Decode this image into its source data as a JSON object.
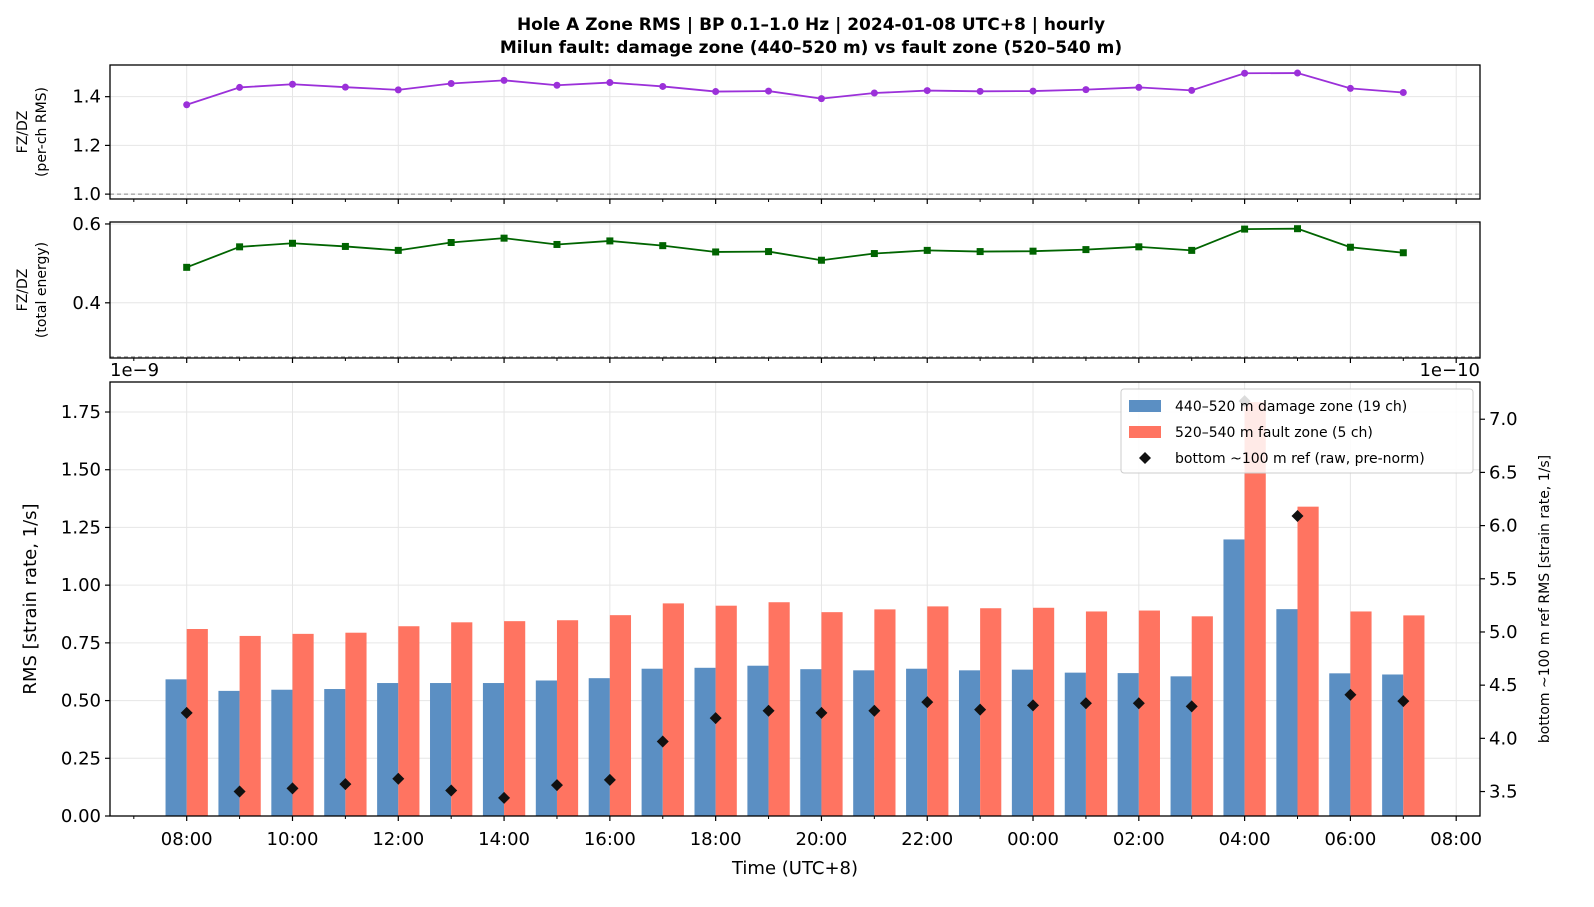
{
  "figure": {
    "title_line1": "Hole A Zone RMS  |  BP 0.1–1.0 Hz  |  2024-01-08 UTC+8  |  hourly",
    "title_line2": "Milun fault: damage zone (440–520 m) vs fault zone (520–540 m)"
  },
  "colors": {
    "ratio_rms": "#9b30d9",
    "ratio_energy": "#006400",
    "damage_zone": "#5b8fc3",
    "fault_zone": "#ff7461",
    "bottom_ref": "#111111"
  },
  "chart_data": [
    {
      "type": "line",
      "ylabel_line1": "FZ/DZ",
      "ylabel_line2": "(per-ch RMS)",
      "ylim": [
        0.98,
        1.53
      ],
      "yticks": [
        1.0,
        1.2,
        1.4
      ],
      "ytick_labels": [
        "1.0",
        "1.2",
        "1.4"
      ],
      "reference_line": 1.0,
      "grid": true,
      "series": [
        {
          "values": [
            1.367,
            1.438,
            1.451,
            1.439,
            1.428,
            1.454,
            1.467,
            1.447,
            1.458,
            1.442,
            1.421,
            1.423,
            1.392,
            1.415,
            1.425,
            1.422,
            1.423,
            1.429,
            1.438,
            1.426,
            1.496,
            1.497,
            1.434,
            1.417
          ]
        }
      ]
    },
    {
      "type": "line",
      "ylabel_line1": "FZ/DZ",
      "ylabel_line2": "(total energy)",
      "ylim": [
        0.26,
        0.605
      ],
      "yticks": [
        0.4,
        0.6
      ],
      "ytick_labels": [
        "0.4",
        "0.6"
      ],
      "reference_line": 0.263,
      "grid": true,
      "series": [
        {
          "values": [
            0.49,
            0.542,
            0.551,
            0.543,
            0.533,
            0.553,
            0.564,
            0.548,
            0.557,
            0.545,
            0.529,
            0.53,
            0.508,
            0.525,
            0.533,
            0.53,
            0.531,
            0.535,
            0.542,
            0.533,
            0.587,
            0.588,
            0.541,
            0.527
          ]
        }
      ]
    },
    {
      "type": "bar",
      "xlabel": "Time (UTC+8)",
      "ylabel": "RMS  [strain rate, 1/s]",
      "ylabel_right": "bottom ~100 m ref RMS  [strain rate, 1/s]",
      "offset_left": "1e−9",
      "offset_right": "1e−10",
      "ylim": [
        0,
        1.88
      ],
      "yticks": [
        0,
        0.25,
        0.5,
        0.75,
        1.0,
        1.25,
        1.5,
        1.75
      ],
      "ytick_labels": [
        "0.00",
        "0.25",
        "0.50",
        "0.75",
        "1.00",
        "1.25",
        "1.50",
        "1.75"
      ],
      "ylim_right": [
        3.27,
        7.35
      ],
      "yticks_right": [
        3.5,
        4.0,
        4.5,
        5.0,
        5.5,
        6.0,
        6.5,
        7.0
      ],
      "ytick_labels_right": [
        "3.5",
        "4.0",
        "4.5",
        "5.0",
        "5.5",
        "6.0",
        "6.5",
        "7.0"
      ],
      "x_hours": [
        8,
        9,
        10,
        11,
        12,
        13,
        14,
        15,
        16,
        17,
        18,
        19,
        20,
        21,
        22,
        23,
        24,
        25,
        26,
        27,
        28,
        29,
        30,
        31
      ],
      "xlim_hours": [
        6.55,
        32.45
      ],
      "xticks_hours": [
        8,
        10,
        12,
        14,
        16,
        18,
        20,
        22,
        24,
        26,
        28,
        30,
        32
      ],
      "xtick_labels": [
        "08:00",
        "10:00",
        "12:00",
        "14:00",
        "16:00",
        "18:00",
        "20:00",
        "22:00",
        "00:00",
        "02:00",
        "04:00",
        "06:00",
        "08:00"
      ],
      "legend_position": "top-right",
      "grid": true,
      "series": [
        {
          "name": "440–520 m  damage zone (19 ch)",
          "values": [
            0.592,
            0.542,
            0.547,
            0.55,
            0.576,
            0.576,
            0.576,
            0.587,
            0.597,
            0.638,
            0.642,
            0.651,
            0.636,
            0.631,
            0.638,
            0.631,
            0.634,
            0.621,
            0.619,
            0.605,
            1.198,
            0.896,
            0.618,
            0.613
          ]
        },
        {
          "name": "520–540 m  fault zone (5 ch)",
          "values": [
            0.81,
            0.78,
            0.789,
            0.794,
            0.822,
            0.839,
            0.844,
            0.848,
            0.87,
            0.921,
            0.911,
            0.926,
            0.883,
            0.895,
            0.908,
            0.9,
            0.902,
            0.886,
            0.89,
            0.865,
            1.793,
            1.34,
            0.886,
            0.869
          ]
        },
        {
          "name": "bottom ~100 m ref (raw, pre-norm)",
          "axis": "right",
          "values": [
            4.24,
            3.5,
            3.53,
            3.57,
            3.62,
            3.51,
            3.44,
            3.56,
            3.61,
            3.97,
            4.19,
            4.26,
            4.24,
            4.26,
            4.34,
            4.27,
            4.31,
            4.33,
            4.33,
            4.3,
            7.17,
            6.09,
            4.41,
            4.35
          ]
        }
      ]
    }
  ]
}
